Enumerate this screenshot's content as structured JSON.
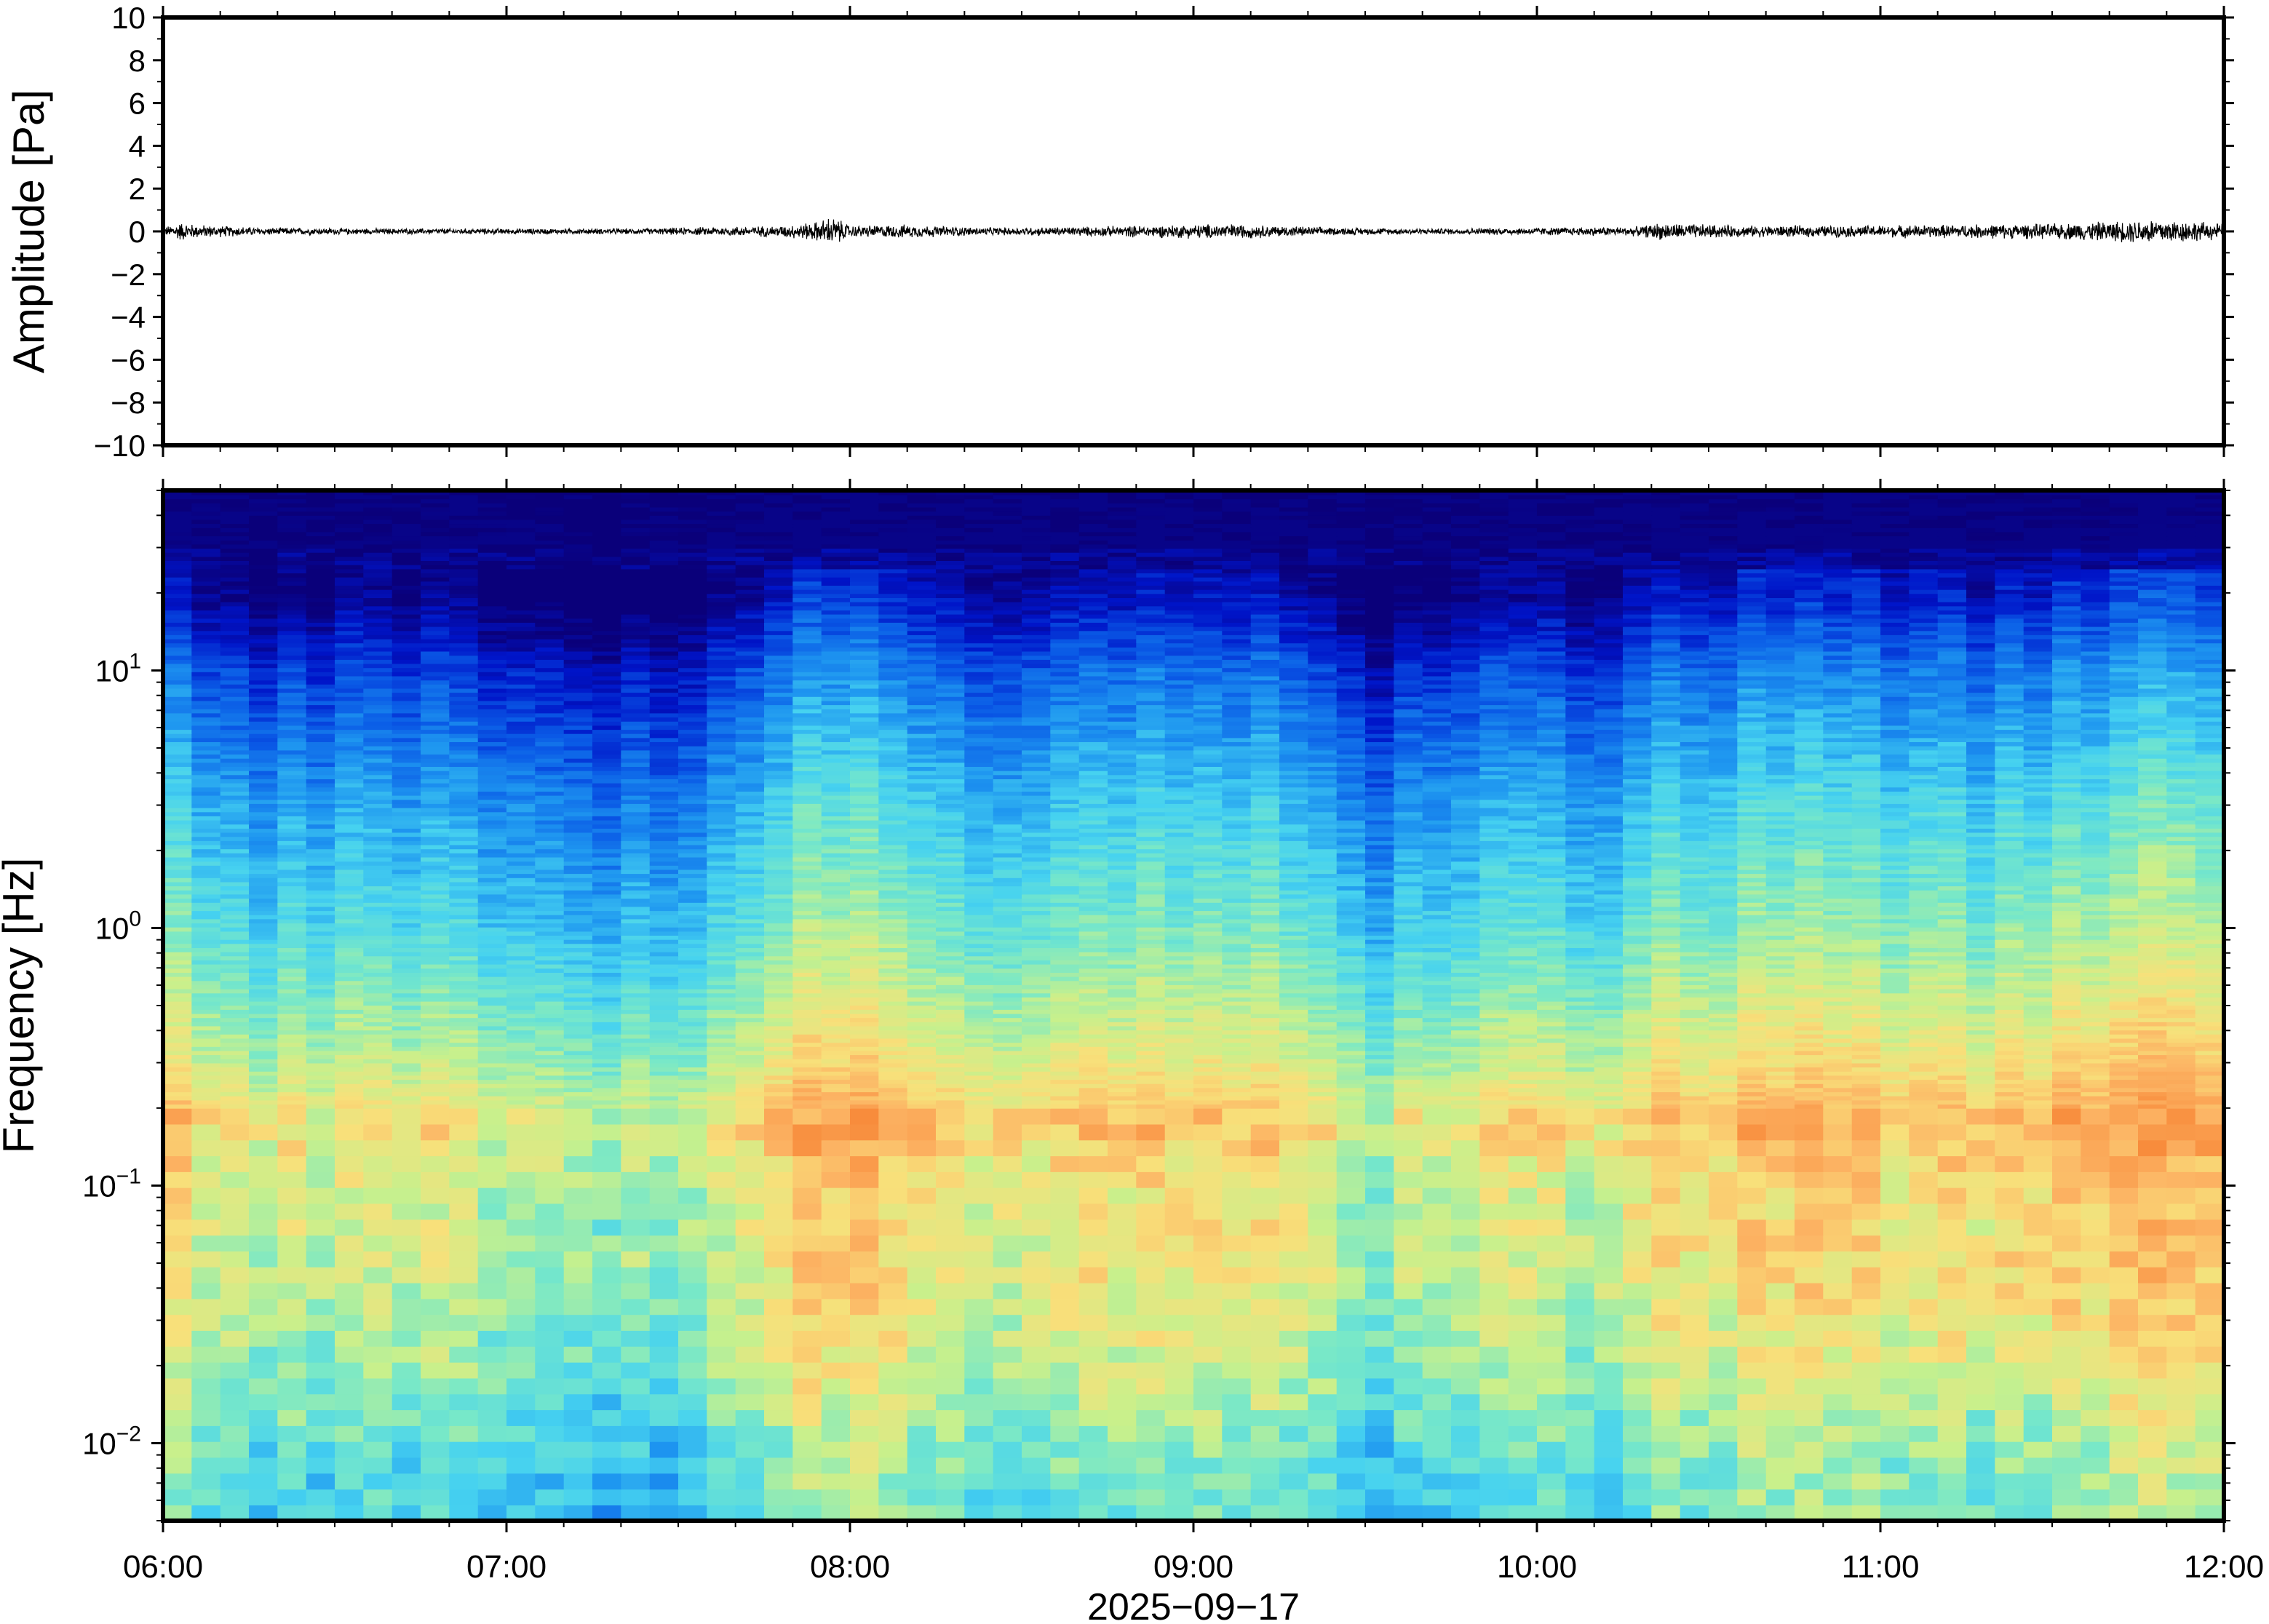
{
  "chart_data": [
    {
      "type": "line",
      "title": "",
      "xlabel": "",
      "ylabel": "Amplitude [Pa]",
      "ylim": [
        -10,
        10
      ],
      "yticks": [
        10,
        8,
        6,
        4,
        2,
        0,
        -2,
        -4,
        -6,
        -8,
        -10
      ],
      "ytick_labels": [
        "10",
        "8",
        "6",
        "4",
        "2",
        "0",
        "−2",
        "−4",
        "−6",
        "−8",
        "−10"
      ],
      "xlim": [
        "06:00",
        "12:00"
      ],
      "grid": false,
      "series": [
        {
          "color": "#000000",
          "x_hours": [
            6.0,
            6.05,
            6.1,
            6.3,
            6.6,
            7.0,
            7.4,
            7.8,
            7.9,
            7.95,
            8.0,
            8.15,
            8.4,
            8.7,
            8.95,
            9.1,
            9.4,
            9.7,
            10.0,
            10.3,
            10.35,
            10.6,
            10.9,
            11.2,
            11.5,
            11.7,
            11.8,
            11.9,
            12.0
          ],
          "envelope_pa": [
            0.2,
            0.5,
            0.35,
            0.2,
            0.15,
            0.15,
            0.15,
            0.3,
            0.5,
            0.8,
            0.3,
            0.35,
            0.2,
            0.25,
            0.35,
            0.4,
            0.2,
            0.15,
            0.2,
            0.25,
            0.45,
            0.3,
            0.3,
            0.35,
            0.4,
            0.55,
            0.7,
            0.55,
            0.4
          ]
        }
      ]
    },
    {
      "type": "heatmap",
      "title": "",
      "xlabel": "2025−09−17",
      "ylabel": "Frequency [Hz]",
      "ylog": true,
      "ylim_hz": [
        0.005,
        50
      ],
      "yticks_hz": [
        10,
        1,
        0.1,
        0.01
      ],
      "ytick_labels": [
        {
          "base": "10",
          "exp": "1"
        },
        {
          "base": "10",
          "exp": "0"
        },
        {
          "base": "10",
          "exp": "−1"
        },
        {
          "base": "10",
          "exp": "−2"
        }
      ],
      "xlim": [
        "06:00",
        "12:00"
      ],
      "xticks": [
        "06:00",
        "07:00",
        "08:00",
        "09:00",
        "10:00",
        "11:00",
        "12:00"
      ],
      "colormap": [
        "#0a007a",
        "#0014c8",
        "#0a5ae6",
        "#1e96f0",
        "#46d2f0",
        "#78e8c8",
        "#c8f08c",
        "#f8e07a",
        "#fcb464",
        "#f88c3c"
      ],
      "energy_profile": {
        "description_levels": "relative spectral level 0-1 per frequency decade",
        "freq_hz": [
          0.005,
          0.01,
          0.02,
          0.05,
          0.1,
          0.17,
          0.3,
          1,
          3,
          10,
          20,
          50
        ],
        "level": [
          0.5,
          0.55,
          0.65,
          0.72,
          0.72,
          0.82,
          0.7,
          0.52,
          0.4,
          0.22,
          0.05,
          0.0
        ]
      },
      "time_modulation": {
        "x_hours": [
          6.0,
          6.1,
          6.3,
          6.6,
          6.85,
          7.0,
          7.3,
          7.6,
          7.8,
          7.95,
          8.15,
          8.4,
          8.7,
          8.95,
          9.2,
          9.4,
          9.55,
          9.7,
          10.0,
          10.2,
          10.35,
          10.5,
          10.75,
          11.0,
          11.3,
          11.6,
          11.8,
          12.0
        ],
        "offset": [
          0.08,
          0.02,
          -0.05,
          -0.04,
          0.0,
          -0.08,
          -0.12,
          -0.1,
          0.08,
          0.1,
          0.08,
          -0.02,
          0.02,
          0.06,
          0.03,
          -0.02,
          -0.12,
          -0.05,
          0.0,
          -0.06,
          0.08,
          0.04,
          0.1,
          0.05,
          0.05,
          0.08,
          0.14,
          0.1
        ]
      }
    }
  ]
}
